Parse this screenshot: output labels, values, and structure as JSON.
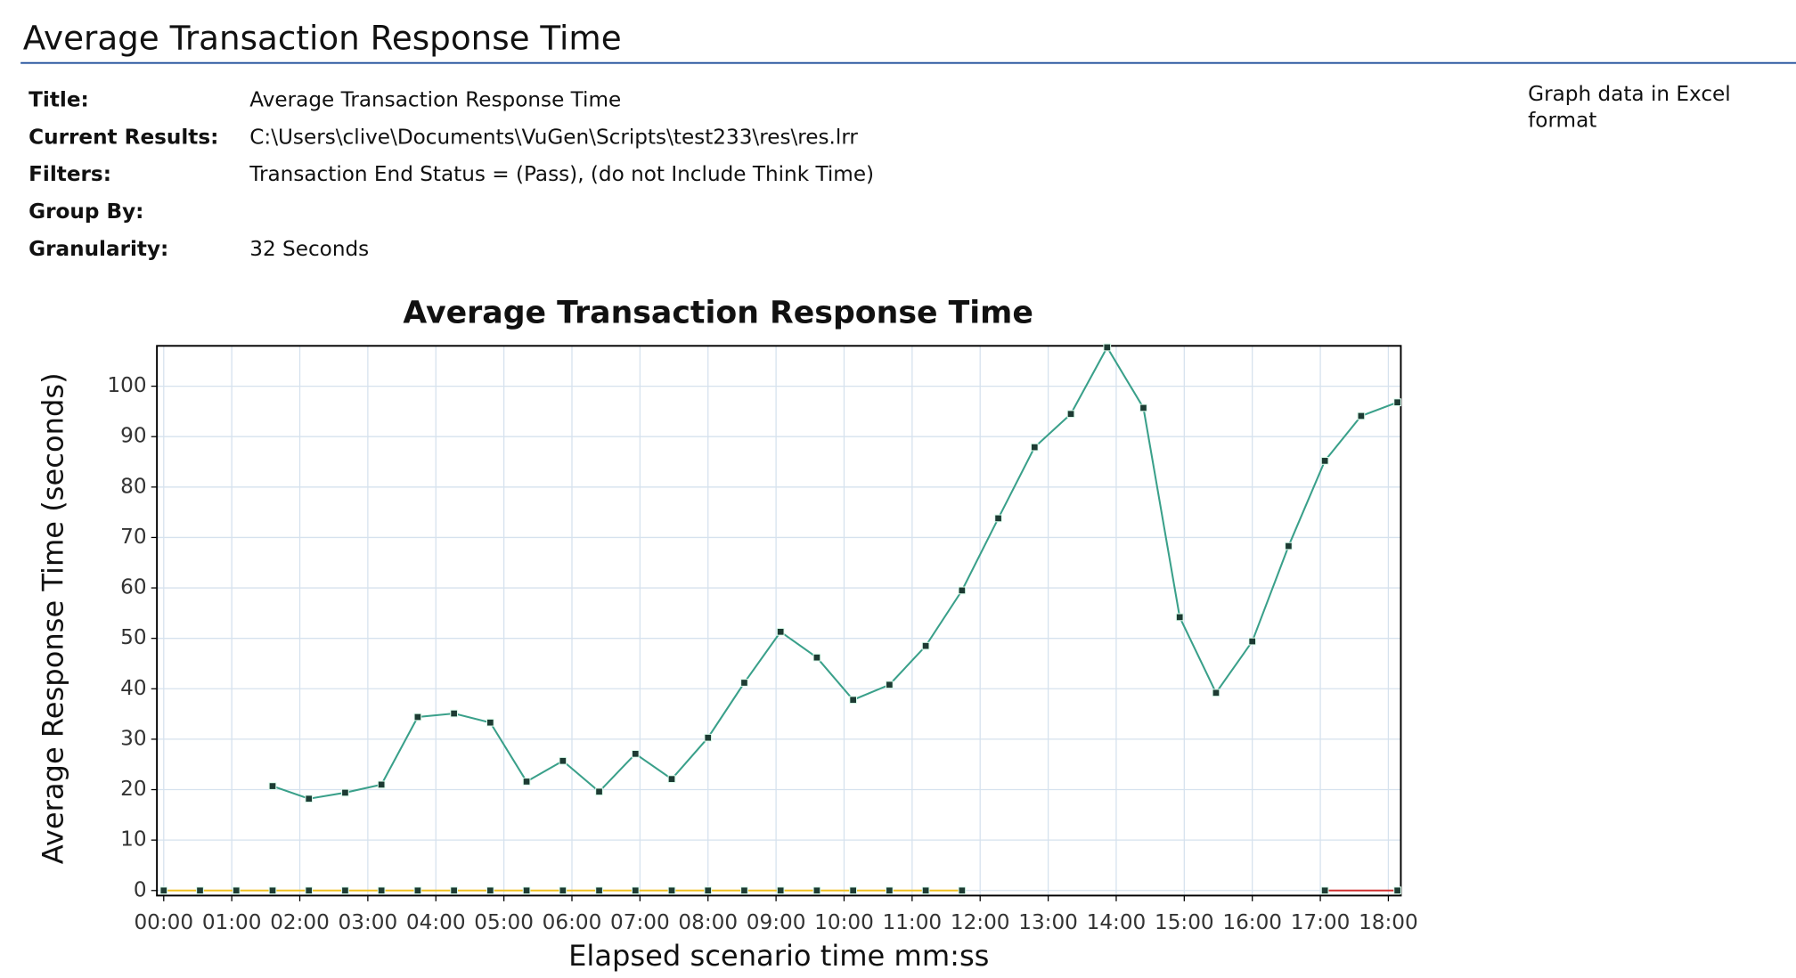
{
  "report": {
    "heading": "Average Transaction Response Time",
    "fields": [
      {
        "label": "Title:",
        "value": "Average Transaction Response Time"
      },
      {
        "label": "Current Results:",
        "value": "C:\\Users\\clive\\Documents\\VuGen\\Scripts\\test233\\res\\res.lrr"
      },
      {
        "label": "Filters:",
        "value": "Transaction End Status = (Pass), (do not Include Think Time)"
      },
      {
        "label": "Group By:"
      },
      {
        "label": "Granularity:",
        "value": "32 Seconds"
      }
    ],
    "excel_link": "Graph data in Excel format"
  },
  "chart_data": {
    "type": "line",
    "title": "Average Transaction Response Time",
    "x_label": "Elapsed scenario time mm:ss",
    "y_label": "Average Response Time (seconds)",
    "xlim": [
      -6,
      1091
    ],
    "ylim": [
      -1,
      108
    ],
    "grid": true,
    "xticks": [
      {
        "value": 0,
        "label": "00:00"
      },
      {
        "value": 60,
        "label": "01:00"
      },
      {
        "value": 120,
        "label": "02:00"
      },
      {
        "value": 180,
        "label": "03:00"
      },
      {
        "value": 240,
        "label": "04:00"
      },
      {
        "value": 300,
        "label": "05:00"
      },
      {
        "value": 360,
        "label": "06:00"
      },
      {
        "value": 420,
        "label": "07:00"
      },
      {
        "value": 480,
        "label": "08:00"
      },
      {
        "value": 540,
        "label": "09:00"
      },
      {
        "value": 600,
        "label": "10:00"
      },
      {
        "value": 660,
        "label": "11:00"
      },
      {
        "value": 720,
        "label": "12:00"
      },
      {
        "value": 780,
        "label": "13:00"
      },
      {
        "value": 840,
        "label": "14:00"
      },
      {
        "value": 900,
        "label": "15:00"
      },
      {
        "value": 960,
        "label": "16:00"
      },
      {
        "value": 1020,
        "label": "17:00"
      },
      {
        "value": 1080,
        "label": "18:00"
      }
    ],
    "yticks": [
      0,
      10,
      20,
      30,
      40,
      50,
      60,
      70,
      80,
      90,
      100
    ],
    "series": [
      {
        "color": "#3aa08a",
        "x": [
          96,
          128,
          160,
          192,
          224,
          256,
          288,
          320,
          352,
          384,
          416,
          448,
          480,
          512,
          544,
          576,
          608,
          640,
          672,
          704,
          736,
          768,
          800,
          832,
          864,
          896,
          928,
          960,
          992,
          1024,
          1056,
          1088
        ],
        "values": [
          20.7,
          18.2,
          19.4,
          21,
          34.4,
          35.1,
          33.3,
          21.6,
          25.7,
          19.6,
          27.1,
          22.1,
          30.3,
          41.2,
          51.3,
          46.2,
          37.8,
          40.8,
          48.5,
          59.5,
          73.8,
          87.9,
          94.5,
          107.7,
          95.7,
          54.2,
          39.2,
          49.4,
          68.3,
          85.2,
          94.1,
          96.8
        ]
      },
      {
        "color": "#f0c020",
        "x": [
          0,
          32,
          64,
          96,
          128,
          160,
          192,
          224,
          256,
          288,
          320,
          352,
          384,
          416,
          448,
          480,
          512,
          544,
          576,
          608,
          640,
          672,
          704
        ],
        "values": [
          0,
          0,
          0,
          0,
          0,
          0,
          0,
          0,
          0,
          0,
          0,
          0,
          0,
          0,
          0,
          0,
          0,
          0,
          0,
          0,
          0,
          0,
          0
        ]
      },
      {
        "color": "#d03030",
        "x": [
          1024,
          1088
        ],
        "values": [
          0,
          0
        ]
      }
    ]
  }
}
